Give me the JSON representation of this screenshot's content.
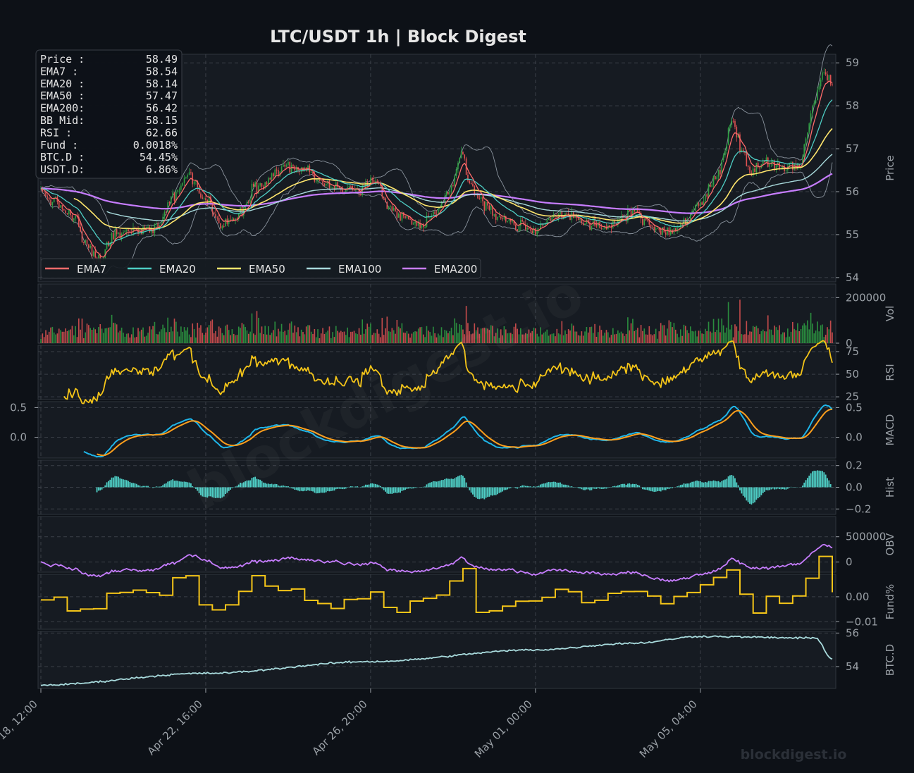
{
  "header": {
    "title": "LTC/USDT  1h  |  Block Digest"
  },
  "watermark": {
    "diagonal": "blockdigest.io",
    "corner": "blockdigest.io"
  },
  "colors": {
    "background": "#0d1117",
    "panel": "#161b22",
    "grid": "#3a3f47",
    "text": "#9aa0a6",
    "title": "#e6e6e6",
    "up": "#2ea043",
    "down": "#e05252",
    "ema7": "#ff6b6b",
    "ema20": "#4ecdc4",
    "ema50": "#ffe66d",
    "ema100": "#a8dadc",
    "ema200": "#c77dff",
    "bb": "#8b949e",
    "rsi": "#f5c518",
    "macd": "#1fb5e8",
    "signal": "#ff9f1c",
    "hist": "#4ecdc4",
    "obv": "#c77dff",
    "funding": "#f5c518",
    "btcd": "#a8dadc"
  },
  "info_box": [
    {
      "label": "Price :",
      "value": "58.49"
    },
    {
      "label": "EMA7  :",
      "value": "58.54"
    },
    {
      "label": "EMA20 :",
      "value": "58.14"
    },
    {
      "label": "EMA50 :",
      "value": "57.47"
    },
    {
      "label": "EMA200:",
      "value": "56.42"
    },
    {
      "label": "BB Mid:",
      "value": "58.15"
    },
    {
      "label": "RSI   :",
      "value": "62.66"
    },
    {
      "label": "Fund  :",
      "value": "0.0018%"
    },
    {
      "label": "BTC.D :",
      "value": "54.45%"
    },
    {
      "label": "USDT.D:",
      "value": "6.86%"
    }
  ],
  "chart_data": {
    "type": "line",
    "x_axis": {
      "ticks": [
        "Apr 18, 12:00",
        "Apr 22, 16:00",
        "Apr 26, 20:00",
        "May 01, 00:00",
        "May 05, 04:00"
      ],
      "range_hours": [
        0,
        480
      ],
      "tick_hours": [
        0,
        100,
        200,
        300,
        400
      ]
    },
    "legend": {
      "placement": "lower-left",
      "entries": [
        "EMA7",
        "EMA20",
        "EMA50",
        "EMA100",
        "EMA200"
      ]
    },
    "panels": [
      {
        "key": "price",
        "ylabel": "Price",
        "ylim": [
          53.9,
          59.2
        ],
        "yticks": [
          54,
          55,
          56,
          57,
          58,
          59
        ],
        "close_keypoints": [
          [
            0,
            56.0
          ],
          [
            10,
            55.7
          ],
          [
            20,
            55.4
          ],
          [
            28,
            54.7
          ],
          [
            35,
            54.4
          ],
          [
            45,
            55.0
          ],
          [
            60,
            55.1
          ],
          [
            70,
            55.2
          ],
          [
            80,
            55.9
          ],
          [
            90,
            56.4
          ],
          [
            100,
            55.8
          ],
          [
            110,
            55.2
          ],
          [
            120,
            55.5
          ],
          [
            130,
            56.1
          ],
          [
            140,
            56.4
          ],
          [
            150,
            56.6
          ],
          [
            160,
            56.5
          ],
          [
            170,
            56.2
          ],
          [
            180,
            56.1
          ],
          [
            190,
            56.0
          ],
          [
            200,
            56.2
          ],
          [
            205,
            56.1
          ],
          [
            210,
            55.6
          ],
          [
            220,
            55.4
          ],
          [
            230,
            55.2
          ],
          [
            240,
            55.5
          ],
          [
            250,
            56.2
          ],
          [
            255,
            56.9
          ],
          [
            260,
            56.3
          ],
          [
            265,
            55.8
          ],
          [
            270,
            55.6
          ],
          [
            280,
            55.4
          ],
          [
            290,
            55.2
          ],
          [
            300,
            55.1
          ],
          [
            310,
            55.4
          ],
          [
            320,
            55.5
          ],
          [
            330,
            55.3
          ],
          [
            340,
            55.1
          ],
          [
            350,
            55.3
          ],
          [
            360,
            55.6
          ],
          [
            370,
            55.2
          ],
          [
            380,
            55.0
          ],
          [
            390,
            55.3
          ],
          [
            400,
            55.7
          ],
          [
            410,
            56.4
          ],
          [
            420,
            57.6
          ],
          [
            425,
            57.0
          ],
          [
            430,
            56.5
          ],
          [
            440,
            56.7
          ],
          [
            450,
            56.5
          ],
          [
            460,
            56.6
          ],
          [
            470,
            58.2
          ],
          [
            475,
            58.8
          ],
          [
            480,
            58.49
          ]
        ],
        "series_last": {
          "EMA7": 58.54,
          "EMA20": 58.14,
          "EMA50": 57.47,
          "EMA200": 56.42
        }
      },
      {
        "key": "vol",
        "ylabel": "Vol",
        "ylim": [
          0,
          260000
        ],
        "yticks": [
          0,
          200000
        ],
        "ytick_labels": [
          "0",
          "200000"
        ]
      },
      {
        "key": "rsi",
        "ylabel": "RSI",
        "ylim": [
          22,
          82
        ],
        "yticks": [
          25,
          50,
          75
        ],
        "last": 62.66
      },
      {
        "key": "macd",
        "ylabel": "MACD",
        "ylim": [
          -0.35,
          0.6
        ],
        "yticks": [
          0.0,
          0.5
        ],
        "ytick_labels": [
          "0.0",
          "0.5"
        ]
      },
      {
        "key": "hist",
        "ylabel": "Hist",
        "ylim": [
          -0.25,
          0.25
        ],
        "yticks": [
          -0.2,
          0.0,
          0.2
        ],
        "ytick_labels": [
          "−0.2",
          "0.0",
          "0.2"
        ]
      },
      {
        "key": "obv",
        "ylabel": "OBV",
        "ylim": [
          -200000,
          900000
        ],
        "yticks": [
          0,
          500000
        ],
        "ytick_labels": [
          "0",
          "500000"
        ]
      },
      {
        "key": "funding",
        "ylabel": "Fund%",
        "ylim": [
          -0.013,
          0.009
        ],
        "yticks": [
          -0.01,
          0.0
        ],
        "ytick_labels": [
          "−0.01",
          "0.00"
        ],
        "last": 0.0018
      },
      {
        "key": "btcd",
        "ylabel": "BTC.D",
        "ylim": [
          52.7,
          56.1
        ],
        "yticks": [
          54,
          56
        ],
        "ytick_labels": [
          "54",
          "56"
        ],
        "last": 54.45
      }
    ],
    "outer_yticks": {
      "panel": "macd",
      "values": [
        0.0,
        0.5
      ],
      "labels": [
        "0.0",
        "0.5"
      ]
    }
  }
}
